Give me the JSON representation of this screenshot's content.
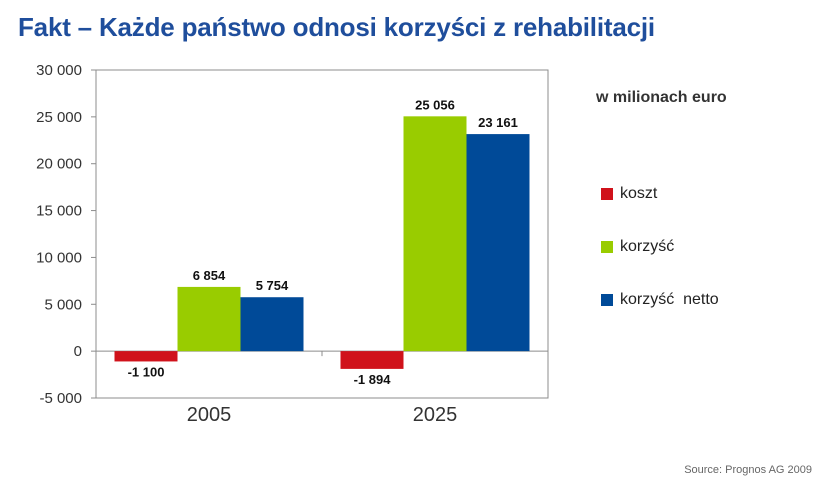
{
  "title": "Fakt – Każde państwo odnosi korzyści z rehabilitacji",
  "unit_note": "w milionach euro",
  "source": "Source: Prognos AG 2009",
  "colors": {
    "koszt": "#d0121b",
    "korzysc": "#99cc00",
    "korzysc_netto": "#004a98"
  },
  "chart_data": {
    "type": "bar",
    "categories": [
      "2005",
      "2025"
    ],
    "series": [
      {
        "name": "koszt",
        "values": [
          -1100,
          -1894
        ],
        "labels": [
          "-1 100",
          "-1 894"
        ]
      },
      {
        "name": "korzyść",
        "values": [
          6854,
          25056
        ],
        "labels": [
          "6 854",
          "25 056"
        ]
      },
      {
        "name": "korzyść  netto",
        "values": [
          5754,
          23161
        ],
        "labels": [
          "5 754",
          "23 161"
        ]
      }
    ],
    "ylim": [
      -5000,
      30000
    ],
    "yticks": [
      -5000,
      0,
      5000,
      10000,
      15000,
      20000,
      25000,
      30000
    ],
    "ytick_labels": [
      "-5 000",
      "0",
      "5 000",
      "10 000",
      "15 000",
      "20 000",
      "25 000",
      "30 000"
    ],
    "legend_position": "right",
    "grid": false
  }
}
